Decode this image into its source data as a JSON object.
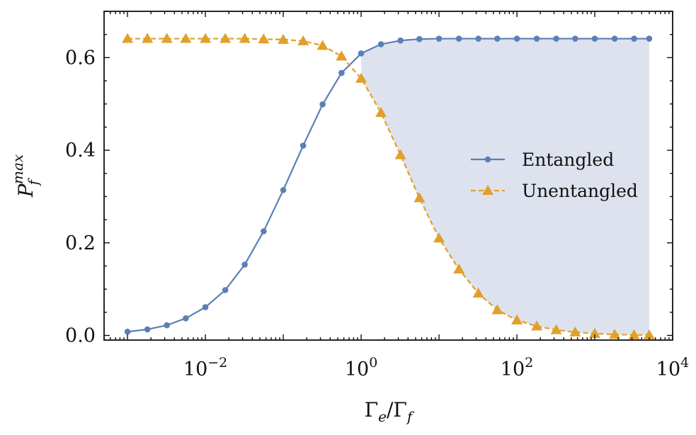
{
  "chart_data": {
    "type": "line",
    "x_scale": "log",
    "xlim": [
      0.0005,
      10000
    ],
    "ylim": [
      -0.01,
      0.7
    ],
    "xlabel": "Γ_e/Γ_f",
    "ylabel": "P_f^max",
    "x_ticks": [
      {
        "value": 0.01,
        "base": "10",
        "exp": "−2"
      },
      {
        "value": 1,
        "base": "10",
        "exp": "0"
      },
      {
        "value": 100,
        "base": "10",
        "exp": "2"
      },
      {
        "value": 10000,
        "base": "10",
        "exp": "4"
      }
    ],
    "y_ticks": [
      "0.0",
      "0.2",
      "0.4",
      "0.6"
    ],
    "legend_position": "center-right",
    "shaded_region": {
      "x_from": 1,
      "x_to": 5000,
      "color": "#dde2ee"
    },
    "series": [
      {
        "name": "Entangled",
        "color": "#5b7fb7",
        "marker": "circle",
        "line": "solid",
        "points": [
          [
            0.001,
            0.008
          ],
          [
            0.0018,
            0.013
          ],
          [
            0.0032,
            0.022
          ],
          [
            0.0056,
            0.037
          ],
          [
            0.01,
            0.061
          ],
          [
            0.018,
            0.098
          ],
          [
            0.032,
            0.153
          ],
          [
            0.056,
            0.225
          ],
          [
            0.1,
            0.314
          ],
          [
            0.18,
            0.41
          ],
          [
            0.32,
            0.499
          ],
          [
            0.56,
            0.567
          ],
          [
            1,
            0.609
          ],
          [
            1.8,
            0.629
          ],
          [
            3.2,
            0.637
          ],
          [
            5.6,
            0.64
          ],
          [
            10,
            0.641
          ],
          [
            18,
            0.641
          ],
          [
            32,
            0.641
          ],
          [
            56,
            0.641
          ],
          [
            100,
            0.641
          ],
          [
            180,
            0.641
          ],
          [
            320,
            0.641
          ],
          [
            560,
            0.641
          ],
          [
            1000,
            0.641
          ],
          [
            1800,
            0.641
          ],
          [
            3200,
            0.641
          ],
          [
            5000,
            0.641
          ]
        ]
      },
      {
        "name": "Unentangled",
        "color": "#e0a02a",
        "marker": "triangle",
        "line": "dashed",
        "points": [
          [
            0.001,
            0.641
          ],
          [
            0.0018,
            0.641
          ],
          [
            0.0032,
            0.641
          ],
          [
            0.0056,
            0.641
          ],
          [
            0.01,
            0.641
          ],
          [
            0.018,
            0.641
          ],
          [
            0.032,
            0.641
          ],
          [
            0.056,
            0.64
          ],
          [
            0.1,
            0.639
          ],
          [
            0.18,
            0.636
          ],
          [
            0.32,
            0.626
          ],
          [
            0.56,
            0.603
          ],
          [
            1,
            0.555
          ],
          [
            1.8,
            0.481
          ],
          [
            3.2,
            0.39
          ],
          [
            5.6,
            0.297
          ],
          [
            10,
            0.21
          ],
          [
            18,
            0.143
          ],
          [
            32,
            0.091
          ],
          [
            56,
            0.055
          ],
          [
            100,
            0.033
          ],
          [
            180,
            0.02
          ],
          [
            320,
            0.012
          ],
          [
            560,
            0.007
          ],
          [
            1000,
            0.004
          ],
          [
            1800,
            0.002
          ],
          [
            3200,
            0.001
          ],
          [
            5000,
            0.001
          ]
        ]
      }
    ]
  }
}
